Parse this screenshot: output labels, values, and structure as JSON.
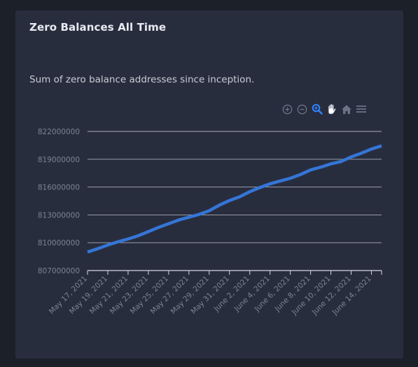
{
  "card": {
    "title": "Zero Balances All Time",
    "subtitle": "Sum of zero balance addresses since inception."
  },
  "toolbar": {
    "icons": [
      "zoom-in-icon",
      "zoom-out-icon",
      "zoom-selection-icon",
      "pan-hand-icon",
      "reset-home-icon",
      "menu-icon"
    ],
    "active_color": "#2f83ff",
    "inactive_color": "#6b7385"
  },
  "colors": {
    "background": "#1b2029",
    "card": "#282d3e",
    "line": "#3575d6",
    "grid": "#d4d7de",
    "axis_text": "#7d8392"
  },
  "chart_data": {
    "type": "line",
    "title": "",
    "xlabel": "",
    "ylabel": "",
    "ylim": [
      807000000,
      822000000
    ],
    "y_ticks": [
      807000000,
      810000000,
      813000000,
      816000000,
      819000000,
      822000000
    ],
    "y_tick_labels": [
      "807000000",
      "810000000",
      "813000000",
      "816000000",
      "819000000",
      "822000000"
    ],
    "x_tick_labels": [
      "May 17, 2021",
      "May 19, 2021",
      "May 21, 2021",
      "May 23, 2021",
      "May 25, 2021",
      "May 27, 2021",
      "May 29, 2021",
      "May 31, 2021",
      "June 2, 2021",
      "June 4, 2021",
      "June 6, 2021",
      "June 8, 2021",
      "June 10, 2021",
      "June 12, 2021",
      "June 14, 2021"
    ],
    "grid": true,
    "series": [
      {
        "x": [
          "May 17, 2021",
          "May 18, 2021",
          "May 19, 2021",
          "May 20, 2021",
          "May 21, 2021",
          "May 22, 2021",
          "May 23, 2021",
          "May 24, 2021",
          "May 25, 2021",
          "May 26, 2021",
          "May 27, 2021",
          "May 28, 2021",
          "May 29, 2021",
          "May 30, 2021",
          "May 31, 2021",
          "June 1, 2021",
          "June 2, 2021",
          "June 3, 2021",
          "June 4, 2021",
          "June 5, 2021",
          "June 6, 2021",
          "June 7, 2021",
          "June 8, 2021",
          "June 9, 2021",
          "June 10, 2021",
          "June 11, 2021",
          "June 12, 2021",
          "June 13, 2021",
          "June 14, 2021",
          "June 15, 2021"
        ],
        "values": [
          809000000,
          809350000,
          809750000,
          810100000,
          810400000,
          810750000,
          811200000,
          811650000,
          812050000,
          812450000,
          812750000,
          813050000,
          813450000,
          814050000,
          814550000,
          814950000,
          815500000,
          815950000,
          816350000,
          816650000,
          816950000,
          817350000,
          817850000,
          818150000,
          818500000,
          818750000,
          819250000,
          819650000,
          820100000,
          820450000
        ]
      }
    ]
  }
}
